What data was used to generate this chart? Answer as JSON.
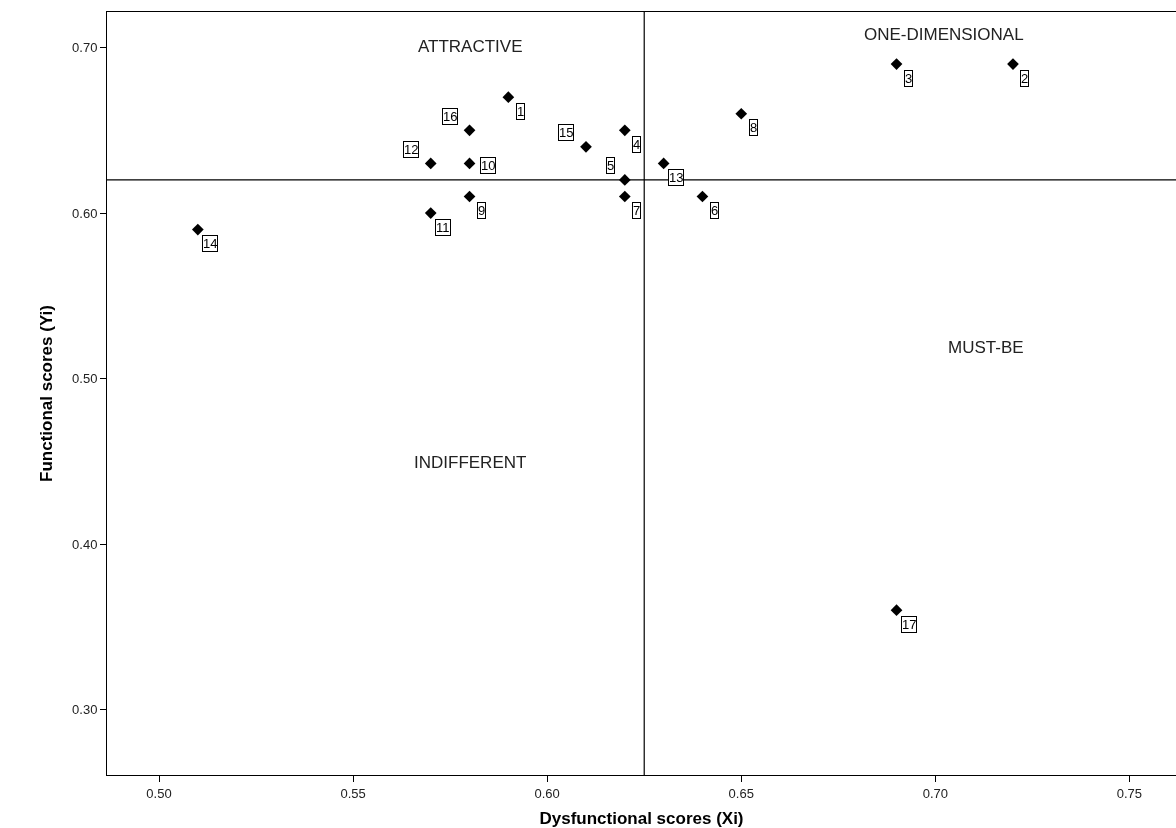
{
  "chart_data": {
    "type": "scatter",
    "xlabel": "Dysfunctional scores (Xi)",
    "ylabel": "Functional scores (Yi)",
    "x": [
      0.59,
      0.72,
      0.69,
      0.62,
      0.62,
      0.64,
      0.62,
      0.65,
      0.58,
      0.58,
      0.57,
      0.57,
      0.63,
      0.51,
      0.61,
      0.58,
      0.69
    ],
    "values": [
      0.67,
      0.69,
      0.69,
      0.65,
      0.62,
      0.61,
      0.61,
      0.66,
      0.61,
      0.63,
      0.6,
      0.63,
      0.63,
      0.59,
      0.64,
      0.65,
      0.36
    ],
    "color": "#000000",
    "marker": "diamond",
    "xlim": [
      0.4866,
      0.762
    ],
    "xticks": [
      {
        "value": 0.5,
        "label": "0.50"
      },
      {
        "value": 0.55,
        "label": "0.55"
      },
      {
        "value": 0.6,
        "label": "0.60"
      },
      {
        "value": 0.65,
        "label": "0.65"
      },
      {
        "value": 0.7,
        "label": "0.70"
      },
      {
        "value": 0.75,
        "label": "0.75"
      }
    ],
    "ylim": [
      0.2604,
      0.7215
    ],
    "yticks": [
      {
        "value": 0.3,
        "label": "0.30"
      },
      {
        "value": 0.4,
        "label": "0.40"
      },
      {
        "value": 0.5,
        "label": "0.50"
      },
      {
        "value": 0.6,
        "label": "0.60"
      },
      {
        "value": 0.7,
        "label": "0.70"
      }
    ],
    "ref_lines": [
      {
        "axis": "x",
        "value": 0.625,
        "color": "#000000"
      },
      {
        "axis": "y",
        "value": 0.62,
        "color": "#000000"
      }
    ],
    "annotations": [
      "ATTRACTIVE",
      "ONE-DIMENSIONAL",
      "MUST-BE",
      "INDIFFERENT",
      {
        "text": "1",
        "x": 0.59,
        "y": 0.67
      },
      {
        "text": "2",
        "x": 0.72,
        "y": 0.69
      },
      {
        "text": "3",
        "x": 0.69,
        "y": 0.69
      },
      {
        "text": "4",
        "x": 0.62,
        "y": 0.65
      },
      {
        "text": "5",
        "x": 0.62,
        "y": 0.62
      },
      {
        "text": "6",
        "x": 0.64,
        "y": 0.61
      },
      {
        "text": "7",
        "x": 0.62,
        "y": 0.61
      },
      {
        "text": "8",
        "x": 0.65,
        "y": 0.66
      },
      {
        "text": "9",
        "x": 0.58,
        "y": 0.61
      },
      {
        "text": "10",
        "x": 0.58,
        "y": 0.63
      },
      {
        "text": "11",
        "x": 0.57,
        "y": 0.6
      },
      {
        "text": "12",
        "x": 0.57,
        "y": 0.63
      },
      {
        "text": "13",
        "x": 0.63,
        "y": 0.63
      },
      {
        "text": "14",
        "x": 0.51,
        "y": 0.59
      },
      {
        "text": "15",
        "x": 0.61,
        "y": 0.64
      },
      {
        "text": "16",
        "x": 0.58,
        "y": 0.65
      },
      {
        "text": "17",
        "x": 0.69,
        "y": 0.36
      }
    ],
    "legend": false
  }
}
